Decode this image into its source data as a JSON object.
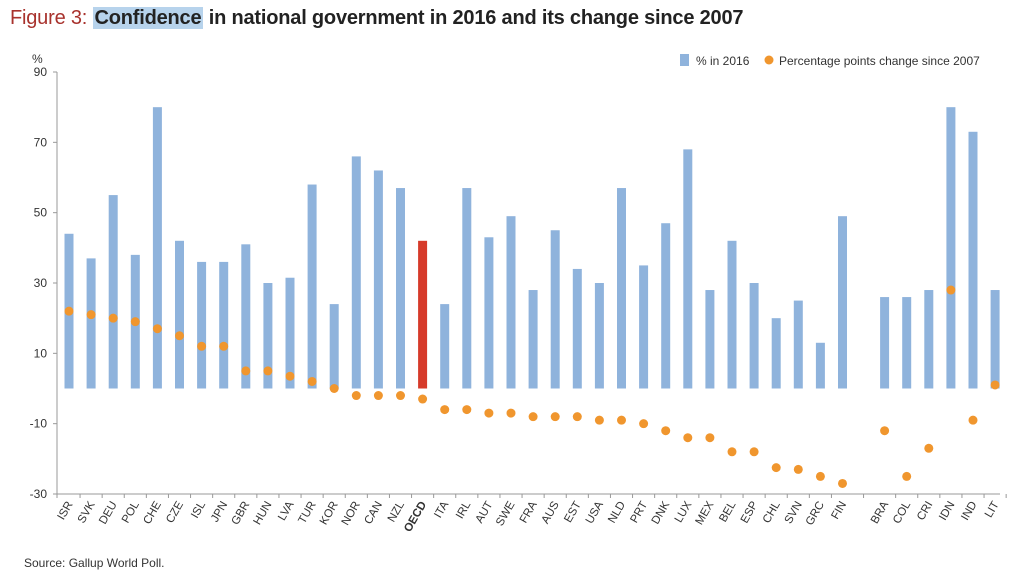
{
  "title": {
    "prefix": "Figure 3:",
    "highlight": "Confidence",
    "rest": " in national government in 2016 and its change since 2007"
  },
  "source": "Source: Gallup World Poll.",
  "colors": {
    "bar": "#8fb3dc",
    "bar_highlight": "#d63a2a",
    "dot": "#f0962e",
    "axis": "#999999"
  },
  "chart_data": {
    "type": "bar",
    "ylabel": "%",
    "ylim": [
      -30,
      90
    ],
    "yticks": [
      -30,
      -10,
      10,
      30,
      50,
      70,
      90
    ],
    "legend_position": "top-right",
    "highlight_category": "OECD",
    "categories": [
      "ISR",
      "SVK",
      "DEU",
      "POL",
      "CHE",
      "CZE",
      "ISL",
      "JPN",
      "GBR",
      "HUN",
      "LVA",
      "TUR",
      "KOR",
      "NOR",
      "CAN",
      "NZL",
      "OECD",
      "ITA",
      "IRL",
      "AUT",
      "SWE",
      "FRA",
      "AUS",
      "EST",
      "USA",
      "NLD",
      "PRT",
      "DNK",
      "LUX",
      "MEX",
      "BEL",
      "ESP",
      "CHL",
      "SVN",
      "GRC",
      "FIN",
      "BRA",
      "COL",
      "CRI",
      "IDN",
      "IND",
      "LIT"
    ],
    "series": [
      {
        "name": "% in 2016",
        "kind": "bar",
        "values": [
          44,
          37,
          55,
          38,
          80,
          42,
          36,
          36,
          41,
          30,
          31.5,
          58,
          24,
          66,
          62,
          57,
          42,
          24,
          57,
          43,
          49,
          28,
          45,
          34,
          30,
          57,
          35,
          47,
          68,
          28,
          42,
          30,
          20,
          25,
          13,
          49,
          26,
          26,
          28,
          80,
          73,
          28
        ]
      },
      {
        "name": "Percentage points change since 2007",
        "kind": "dot",
        "values": [
          22,
          21,
          20,
          19,
          17,
          15,
          12,
          12,
          5,
          5,
          3.5,
          2,
          0,
          -2,
          -2,
          -2,
          -3,
          -6,
          -6,
          -7,
          -7,
          -8,
          -8,
          -8,
          -9,
          -9,
          -10,
          -12,
          -14,
          -14,
          -18,
          -18,
          -22.5,
          -23,
          -25,
          -27,
          -12,
          -25,
          -17,
          28,
          -9,
          1
        ]
      }
    ]
  }
}
